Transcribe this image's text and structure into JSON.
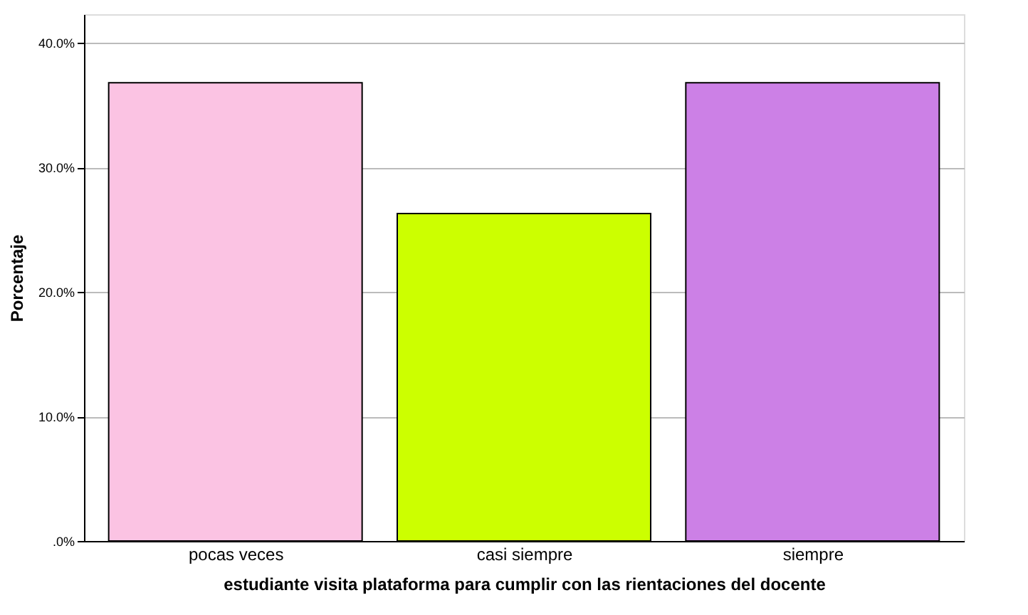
{
  "chart_data": {
    "type": "bar",
    "xlabel": "estudiante visita plataforma para cumplir con las rientaciones del docente",
    "ylabel": "Porcentaje",
    "categories": [
      "pocas veces",
      "casi siempre",
      "siempre"
    ],
    "values": [
      36.8,
      26.3,
      36.8
    ],
    "colors": [
      "#fbc3e3",
      "#ccff00",
      "#cc80e6"
    ],
    "ylim": [
      0,
      42.3
    ],
    "yticks": [
      {
        "value": 0,
        "label": ".0%"
      },
      {
        "value": 10,
        "label": "10.0%"
      },
      {
        "value": 20,
        "label": "20.0%"
      },
      {
        "value": 30,
        "label": "30.0%"
      },
      {
        "value": 40,
        "label": "40.0%"
      }
    ],
    "grid": "y"
  }
}
